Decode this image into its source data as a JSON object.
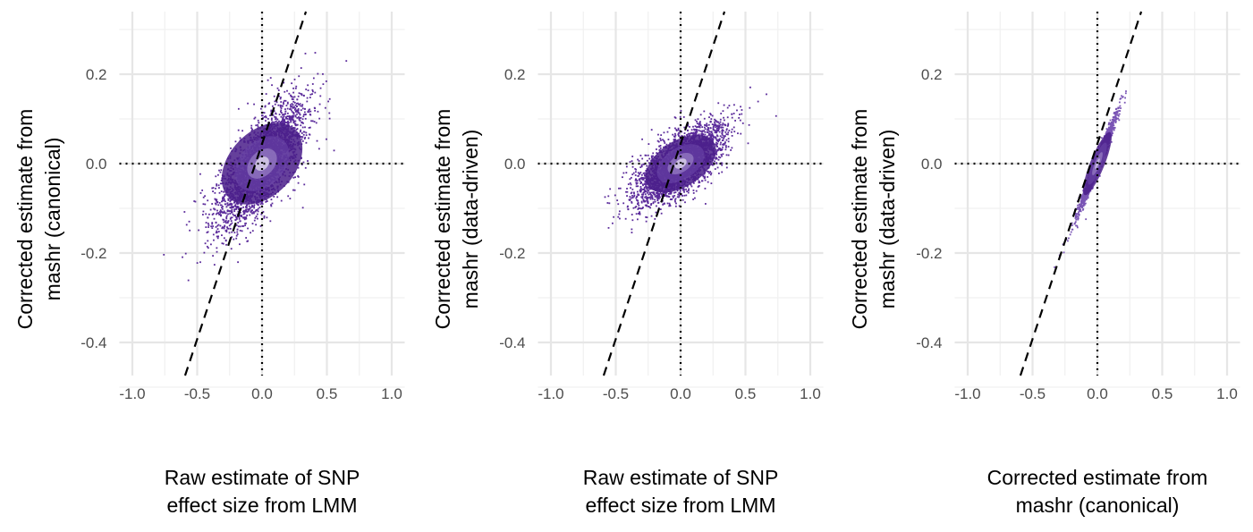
{
  "chart_data": [
    {
      "type": "scatter",
      "xlabel": [
        "Raw estimate of SNP",
        "effect size from LMM"
      ],
      "ylabel": [
        "Corrected estimate from",
        "mashr (canonical)"
      ],
      "xlim": [
        -1.1,
        1.1
      ],
      "ylim": [
        -0.474,
        0.344
      ],
      "x_ticks": [
        "-1.0",
        "-0.5",
        "0.0",
        "0.5",
        "1.0"
      ],
      "y_ticks": [
        "-0.4",
        "-0.2",
        "0.0",
        "0.2"
      ],
      "reference_lines": {
        "vertical_dotted_x": 0,
        "horizontal_dotted_y": 0,
        "dashed_line": {
          "slope": 0.878,
          "intercept": 0.047
        }
      },
      "grid": true,
      "colors": {
        "points": "#5a2a9a",
        "density_high": "#e8e4f2"
      }
    },
    {
      "type": "scatter",
      "xlabel": [
        "Raw estimate of SNP",
        "effect size from LMM"
      ],
      "ylabel": [
        "Corrected estimate from",
        "mashr (data-driven)"
      ],
      "xlim": [
        -1.1,
        1.1
      ],
      "ylim": [
        -0.474,
        0.344
      ],
      "x_ticks": [
        "-1.0",
        "-0.5",
        "0.0",
        "0.5",
        "1.0"
      ],
      "y_ticks": [
        "-0.4",
        "-0.2",
        "0.0",
        "0.2"
      ],
      "reference_lines": {
        "vertical_dotted_x": 0,
        "horizontal_dotted_y": 0,
        "dashed_line": {
          "slope": 0.878,
          "intercept": 0.047
        }
      },
      "grid": true,
      "colors": {
        "points": "#5a2a9a",
        "density_high": "#e8e4f2"
      }
    },
    {
      "type": "scatter",
      "xlabel": [
        "Corrected estimate from",
        "mashr (canonical)"
      ],
      "ylabel": [
        "Corrected estimate from",
        "mashr (data-driven)"
      ],
      "xlim": [
        -1.1,
        1.1
      ],
      "ylim": [
        -0.474,
        0.344
      ],
      "x_ticks": [
        "-1.0",
        "-0.5",
        "0.0",
        "0.5",
        "1.0"
      ],
      "y_ticks": [
        "-0.4",
        "-0.2",
        "0.0",
        "0.2"
      ],
      "reference_lines": {
        "vertical_dotted_x": 0,
        "horizontal_dotted_y": 0,
        "dashed_line": {
          "slope": 0.878,
          "intercept": 0.047
        }
      },
      "grid": true,
      "colors": {
        "points": "#7a55b5",
        "density_high": "#d9d0ec"
      }
    }
  ]
}
